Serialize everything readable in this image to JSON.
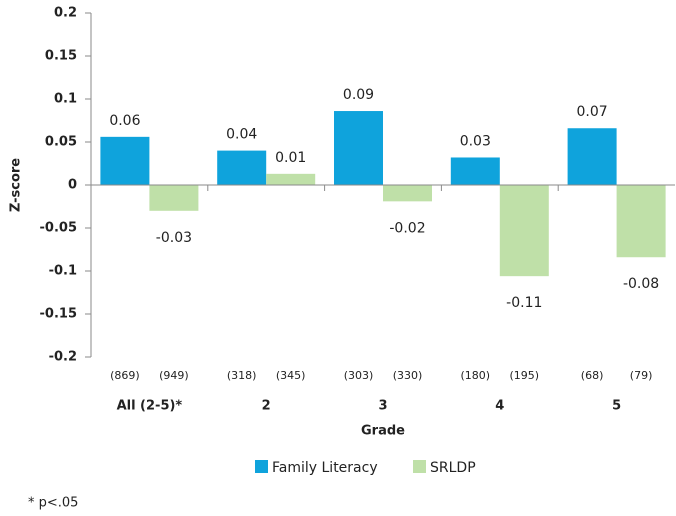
{
  "chart_data": {
    "type": "bar",
    "y_label": "Z-score",
    "x_label": "Grade",
    "categories": [
      "All (2-5)*",
      "2",
      "3",
      "4",
      "5"
    ],
    "series": [
      {
        "name": "Family Literacy",
        "color": "#0fa3dc",
        "values": [
          0.056,
          0.04,
          0.086,
          0.032,
          0.066
        ],
        "value_labels": [
          "0.06",
          "0.04",
          "0.09",
          "0.03",
          "0.07"
        ],
        "sample_sizes": [
          "(869)",
          "(318)",
          "(303)",
          "(180)",
          "(68)"
        ]
      },
      {
        "name": "SRLDP",
        "color": "#bfe0a8",
        "values": [
          -0.03,
          0.013,
          -0.019,
          -0.106,
          -0.084
        ],
        "value_labels": [
          "-0.03",
          "0.01",
          "-0.02",
          "-0.11",
          "-0.08"
        ],
        "sample_sizes": [
          "(949)",
          "(345)",
          "(330)",
          "(195)",
          "(79)"
        ]
      }
    ],
    "ylim": [
      -0.2,
      0.2
    ],
    "yticks": [
      0.2,
      0.15,
      0.1,
      0.05,
      0,
      -0.05,
      -0.1,
      -0.15,
      -0.2
    ],
    "legend": "bottom",
    "footnote": "* p<.05"
  }
}
